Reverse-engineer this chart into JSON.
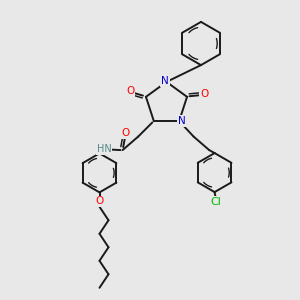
{
  "background_color": "#e8e8e8",
  "figsize": [
    3.0,
    3.0
  ],
  "dpi": 100,
  "atom_colors": {
    "N": "#0000cc",
    "O": "#ff0000",
    "Cl": "#00bb00",
    "H": "#558888"
  },
  "bond_color": "#1a1a1a",
  "bond_lw": 1.4,
  "font_size": 7.5
}
